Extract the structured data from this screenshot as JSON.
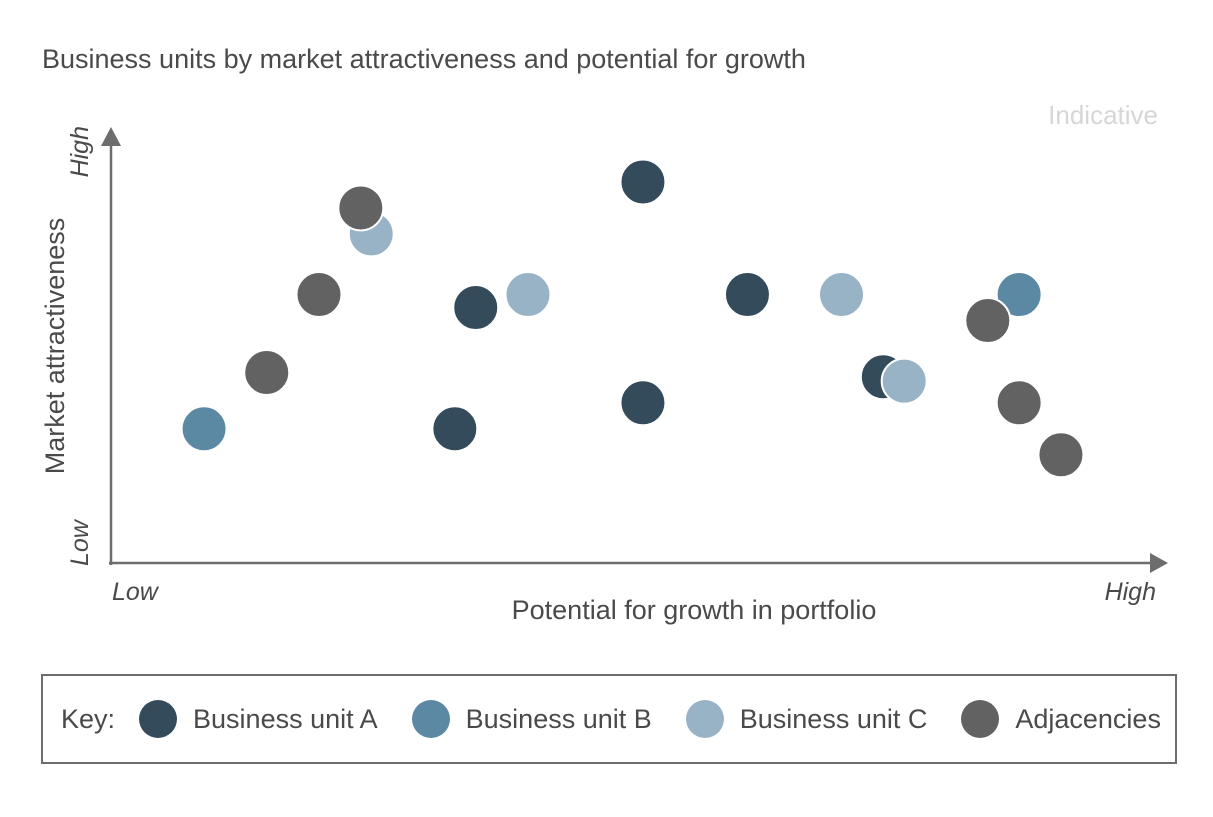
{
  "chart_data": {
    "type": "scatter",
    "title": "Business units by market attractiveness and potential for growth",
    "annotation": "Indicative",
    "xlabel": "Potential for growth in portfolio",
    "ylabel": "Market attractiveness",
    "x_low_label": "Low",
    "x_high_label": "High",
    "y_low_label": "Low",
    "y_high_label": "High",
    "xlim": [
      0,
      100
    ],
    "ylim": [
      0,
      100
    ],
    "series": [
      {
        "name": "Business unit A",
        "color": "#344b5c",
        "points": [
          {
            "x": 33,
            "y": 31
          },
          {
            "x": 35,
            "y": 59
          },
          {
            "x": 51,
            "y": 37
          },
          {
            "x": 51,
            "y": 88
          },
          {
            "x": 61,
            "y": 62
          },
          {
            "x": 74,
            "y": 43
          }
        ]
      },
      {
        "name": "Business unit B",
        "color": "#5b88a3",
        "points": [
          {
            "x": 9,
            "y": 31
          },
          {
            "x": 87,
            "y": 62
          }
        ]
      },
      {
        "name": "Business unit C",
        "color": "#98b2c6",
        "points": [
          {
            "x": 25,
            "y": 76
          },
          {
            "x": 40,
            "y": 62
          },
          {
            "x": 70,
            "y": 62
          },
          {
            "x": 76,
            "y": 42
          }
        ]
      },
      {
        "name": "Adjacencies",
        "color": "#626262",
        "points": [
          {
            "x": 15,
            "y": 44
          },
          {
            "x": 20,
            "y": 62
          },
          {
            "x": 24,
            "y": 82
          },
          {
            "x": 84,
            "y": 56
          },
          {
            "x": 87,
            "y": 37
          },
          {
            "x": 91,
            "y": 25
          }
        ]
      }
    ],
    "legend": {
      "label": "Key:",
      "position": "bottom"
    },
    "grid": false
  }
}
